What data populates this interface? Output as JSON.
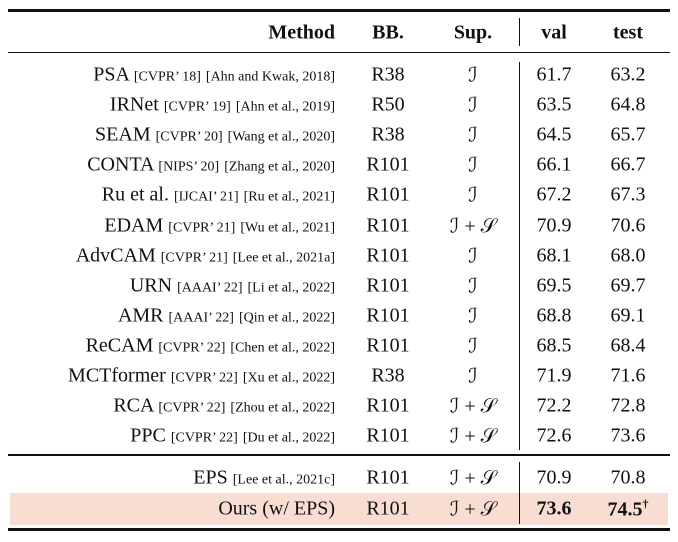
{
  "table": {
    "header": [
      "Method",
      "BB.",
      "Sup.",
      "val",
      "test"
    ],
    "rows": [
      {
        "name": "PSA",
        "venue": "[CVPR’ 18]",
        "cite": "[Ahn and Kwak, 2018]",
        "backbone": "R38",
        "supervision": "ℐ",
        "val": "61.7",
        "test": "63.2"
      },
      {
        "name": "IRNet",
        "venue": "[CVPR’ 19]",
        "cite": "[Ahn et al., 2019]",
        "backbone": "R50",
        "supervision": "ℐ",
        "val": "63.5",
        "test": "64.8"
      },
      {
        "name": "SEAM",
        "venue": "[CVPR’ 20]",
        "cite": "[Wang et al., 2020]",
        "backbone": "R38",
        "supervision": "ℐ",
        "val": "64.5",
        "test": "65.7"
      },
      {
        "name": "CONTA",
        "venue": "[NIPS’ 20]",
        "cite": "[Zhang et al., 2020]",
        "backbone": "R101",
        "supervision": "ℐ",
        "val": "66.1",
        "test": "66.7"
      },
      {
        "name": "Ru et al.",
        "venue": "[IJCAI’ 21]",
        "cite": "[Ru et al., 2021]",
        "backbone": "R101",
        "supervision": "ℐ",
        "val": "67.2",
        "test": "67.3"
      },
      {
        "name": "EDAM",
        "venue": "[CVPR’ 21]",
        "cite": "[Wu et al., 2021]",
        "backbone": "R101",
        "supervision": "ℐ + 𝒮",
        "val": "70.9",
        "test": "70.6"
      },
      {
        "name": "AdvCAM",
        "venue": "[CVPR’ 21]",
        "cite": "[Lee et al., 2021a]",
        "backbone": "R101",
        "supervision": "ℐ",
        "val": "68.1",
        "test": "68.0"
      },
      {
        "name": "URN",
        "venue": "[AAAI’ 22]",
        "cite": "[Li et al., 2022]",
        "backbone": "R101",
        "supervision": "ℐ",
        "val": "69.5",
        "test": "69.7"
      },
      {
        "name": "AMR",
        "venue": "[AAAI’ 22]",
        "cite": "[Qin et al., 2022]",
        "backbone": "R101",
        "supervision": "ℐ",
        "val": "68.8",
        "test": "69.1"
      },
      {
        "name": "ReCAM",
        "venue": "[CVPR’ 22]",
        "cite": "[Chen et al., 2022]",
        "backbone": "R101",
        "supervision": "ℐ",
        "val": "68.5",
        "test": "68.4"
      },
      {
        "name": "MCTformer",
        "venue": "[CVPR’ 22]",
        "cite": "[Xu et al., 2022]",
        "backbone": "R38",
        "supervision": "ℐ",
        "val": "71.9",
        "test": "71.6"
      },
      {
        "name": "RCA",
        "venue": "[CVPR’ 22]",
        "cite": "[Zhou et al., 2022]",
        "backbone": "R101",
        "supervision": "ℐ + 𝒮",
        "val": "72.2",
        "test": "72.8"
      },
      {
        "name": "PPC",
        "venue": "[CVPR’ 22]",
        "cite": "[Du et al., 2022]",
        "backbone": "R101",
        "supervision": "ℐ + 𝒮",
        "val": "72.6",
        "test": "73.6"
      }
    ],
    "extra_rows": [
      {
        "name": "EPS",
        "cite": "[Lee et al., 2021c]",
        "backbone": "R101",
        "supervision": "ℐ + 𝒮",
        "val": "70.9",
        "test": "70.8"
      },
      {
        "name": "Ours (w/ EPS)",
        "backbone": "R101",
        "supervision": "ℐ + 𝒮",
        "val": "73.6",
        "test": "74.5",
        "test_mark": "†"
      }
    ]
  }
}
